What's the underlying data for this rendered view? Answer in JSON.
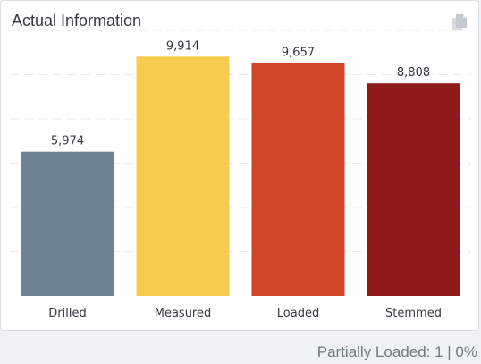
{
  "card": {
    "title": "Actual Information",
    "copy_icon": "copy-icon"
  },
  "chart_data": {
    "type": "bar",
    "title": "Actual Information",
    "categories": [
      "Drilled",
      "Measured",
      "Loaded",
      "Stemmed"
    ],
    "values": [
      5974,
      9914,
      9657,
      8808
    ],
    "value_labels": [
      "5,974",
      "9,914",
      "9,657",
      "8,808"
    ],
    "colors": [
      "#6d8292",
      "#f7cb4d",
      "#d04627",
      "#8e1a1c"
    ],
    "ylim": [
      0,
      11000
    ],
    "grid": true,
    "xlabel": "",
    "ylabel": ""
  },
  "footer": {
    "status_text": "Partially Loaded: 1 | 0%"
  }
}
